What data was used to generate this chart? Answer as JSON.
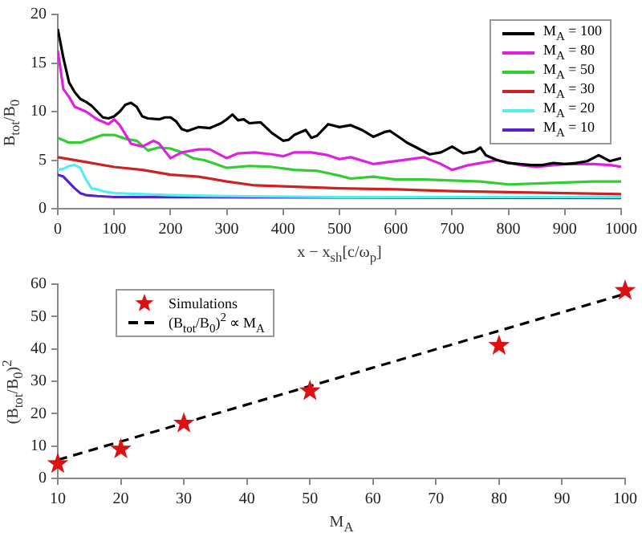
{
  "chart_data": [
    {
      "type": "line",
      "xlabel": "x − x$_{sh}$[c/ω$_{p}$]",
      "ylabel": "B$_{tot}$/B$_{0}$",
      "xlim": [
        0,
        1000
      ],
      "ylim": [
        0,
        20
      ],
      "xticks": [
        0,
        100,
        200,
        300,
        400,
        500,
        600,
        700,
        800,
        900,
        1000
      ],
      "yticks": [
        0,
        5,
        10,
        15,
        20
      ],
      "legend": "top right",
      "series": [
        {
          "name": "M$_{A}$ = 100",
          "color": "#000000",
          "x": [
            0,
            10,
            20,
            30,
            40,
            50,
            60,
            70,
            80,
            90,
            100,
            110,
            120,
            130,
            140,
            150,
            160,
            180,
            190,
            200,
            210,
            220,
            230,
            250,
            270,
            290,
            300,
            310,
            320,
            330,
            340,
            360,
            380,
            400,
            410,
            420,
            440,
            450,
            460,
            480,
            500,
            520,
            540,
            560,
            580,
            590,
            600,
            620,
            640,
            660,
            680,
            700,
            720,
            740,
            750,
            760,
            780,
            800,
            820,
            840,
            860,
            880,
            900,
            920,
            940,
            960,
            980,
            1000
          ],
          "values": [
            18.5,
            15.5,
            13,
            12,
            11.3,
            11,
            10.6,
            10,
            9.4,
            9.3,
            9.5,
            10,
            10.7,
            10.9,
            10.5,
            9.5,
            9.3,
            9.2,
            9.4,
            9.4,
            9,
            8.2,
            8,
            8.4,
            8.3,
            8.8,
            9.2,
            9.7,
            9.1,
            9.2,
            8.8,
            8.9,
            7.8,
            7,
            7.1,
            7.6,
            8.1,
            7.3,
            7.5,
            8.7,
            8.4,
            8.6,
            8.1,
            7.4,
            7.9,
            8,
            7.6,
            6.8,
            6.2,
            5.6,
            5.8,
            6.4,
            5.7,
            5.9,
            6.3,
            5.5,
            5,
            4.7,
            4.6,
            4.5,
            4.5,
            4.7,
            4.6,
            4.7,
            4.9,
            5.5,
            4.9,
            5.2
          ]
        },
        {
          "name": "M$_{A}$ = 80",
          "color": "#e020e0",
          "x": [
            0,
            10,
            20,
            30,
            50,
            70,
            90,
            100,
            110,
            130,
            150,
            170,
            180,
            200,
            220,
            250,
            270,
            300,
            320,
            350,
            380,
            400,
            420,
            450,
            480,
            500,
            520,
            560,
            600,
            650,
            680,
            700,
            730,
            780,
            820,
            850,
            900,
            950,
            980,
            1000
          ],
          "values": [
            16.3,
            12.3,
            11.5,
            10.5,
            10,
            9.2,
            8.7,
            9.2,
            8.6,
            6.7,
            6.4,
            7,
            6.7,
            5.2,
            5.8,
            6.1,
            6.1,
            5.2,
            5.7,
            5.8,
            5.6,
            5.4,
            5.8,
            5.8,
            5.5,
            5.1,
            5.3,
            4.6,
            4.9,
            5.3,
            4.6,
            4,
            4.5,
            5,
            4.5,
            4.3,
            4.6,
            4.6,
            4.5,
            4.3
          ]
        },
        {
          "name": "M$_{A}$ = 50",
          "color": "#33cc33",
          "x": [
            0,
            20,
            40,
            60,
            80,
            100,
            120,
            140,
            160,
            180,
            200,
            220,
            240,
            260,
            280,
            300,
            340,
            380,
            420,
            460,
            500,
            520,
            560,
            600,
            650,
            700,
            750,
            800,
            850,
            900,
            950,
            1000
          ],
          "values": [
            7.3,
            6.8,
            6.8,
            7.2,
            7.6,
            7.6,
            7.2,
            7,
            6,
            6.3,
            6.2,
            5.8,
            5.2,
            5,
            4.6,
            4.2,
            4.4,
            4.3,
            4,
            3.9,
            3.4,
            3.1,
            3.3,
            3,
            3,
            2.9,
            2.8,
            2.5,
            2.6,
            2.7,
            2.8,
            2.8
          ]
        },
        {
          "name": "M$_{A}$ = 30",
          "color": "#cc2222",
          "x": [
            0,
            50,
            100,
            150,
            200,
            250,
            300,
            350,
            400,
            450,
            500,
            600,
            700,
            800,
            900,
            1000
          ],
          "values": [
            5.3,
            4.8,
            4.3,
            4,
            3.5,
            3.3,
            2.8,
            2.4,
            2.3,
            2.2,
            2.1,
            2,
            1.8,
            1.7,
            1.6,
            1.5
          ]
        },
        {
          "name": "M$_{A}$ = 20",
          "color": "#55eeee",
          "x": [
            0,
            10,
            20,
            30,
            40,
            50,
            60,
            70,
            80,
            100,
            150,
            200,
            300,
            500,
            1000
          ],
          "values": [
            4,
            4.1,
            4.4,
            4.5,
            4.2,
            3,
            2.1,
            2,
            1.8,
            1.6,
            1.5,
            1.4,
            1.3,
            1.2,
            1.2
          ]
        },
        {
          "name": "M$_{A}$ = 10",
          "color": "#5522cc",
          "x": [
            0,
            10,
            20,
            30,
            40,
            50,
            70,
            100,
            1000
          ],
          "values": [
            3.5,
            3.3,
            2.7,
            2.1,
            1.6,
            1.4,
            1.3,
            1.2,
            1.1
          ]
        }
      ]
    },
    {
      "type": "scatter",
      "xlabel": "M$_{A}$",
      "ylabel": "(B$_{tot}$/B$_{0}$)$^{2}$",
      "xlim": [
        10,
        100
      ],
      "ylim": [
        0,
        60
      ],
      "xticks": [
        10,
        20,
        30,
        40,
        50,
        60,
        70,
        80,
        90,
        100
      ],
      "yticks": [
        0,
        10,
        20,
        30,
        40,
        50,
        60
      ],
      "legend": "top left",
      "series": [
        {
          "name": "Simulations",
          "type": "scatter",
          "marker": "star",
          "color": "#dd1111",
          "x": [
            10,
            20,
            30,
            50,
            80,
            100
          ],
          "values": [
            4.5,
            9,
            17,
            27,
            41,
            58
          ]
        },
        {
          "name": "(B$_{tot}$/B$_{0}$)$^{2}$ ∝ M$_{A}$",
          "type": "line",
          "line_style": "dashed",
          "color": "#000000",
          "x": [
            10,
            100
          ],
          "values": [
            5.7,
            57
          ]
        }
      ]
    }
  ]
}
